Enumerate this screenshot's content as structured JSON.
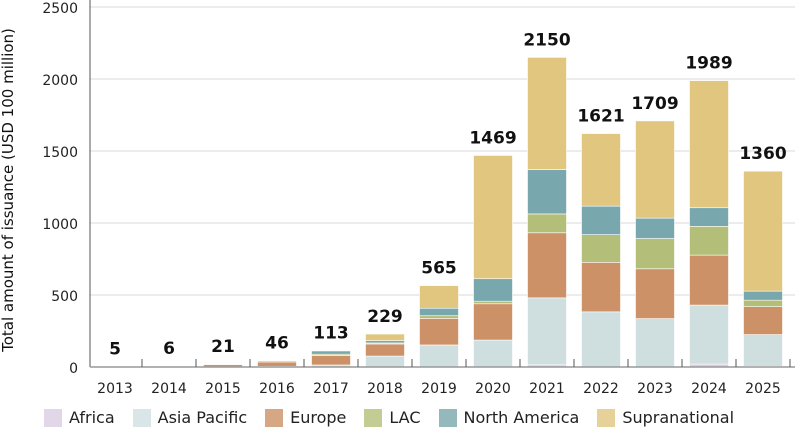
{
  "chart_data": {
    "type": "bar",
    "stacked": true,
    "ylabel": "Total amount of issuance (USD 100 million)",
    "ylim": [
      0,
      2500
    ],
    "yticks": [
      0,
      500,
      1000,
      1500,
      2000,
      2500
    ],
    "grid": true,
    "legend_position": "bottom",
    "categories": [
      "2013",
      "2014",
      "2015",
      "2016",
      "2017",
      "2018",
      "2019",
      "2020",
      "2021",
      "2022",
      "2023",
      "2024",
      "2025"
    ],
    "totals": [
      5,
      6,
      21,
      46,
      113,
      229,
      565,
      1469,
      2150,
      1621,
      1709,
      1989,
      1360
    ],
    "series": [
      {
        "name": "Africa",
        "color": "#d9cde3",
        "values": [
          0,
          0,
          0,
          0,
          0,
          0,
          0,
          0,
          15,
          0,
          0,
          20,
          5
        ]
      },
      {
        "name": "Asia Pacific",
        "color": "#cfdfe0",
        "values": [
          0,
          0,
          2,
          5,
          14,
          76,
          153,
          187,
          465,
          383,
          336,
          410,
          220
        ]
      },
      {
        "name": "Europe",
        "color": "#cc9166",
        "values": [
          5,
          6,
          15,
          30,
          66,
          84,
          185,
          252,
          452,
          344,
          346,
          347,
          194
        ]
      },
      {
        "name": "LAC",
        "color": "#b3bf78",
        "values": [
          0,
          0,
          0,
          2,
          9,
          7,
          18,
          18,
          131,
          192,
          210,
          200,
          45
        ]
      },
      {
        "name": "North America",
        "color": "#78a8ad",
        "values": [
          0,
          0,
          4,
          7,
          23,
          16,
          52,
          156,
          308,
          198,
          142,
          129,
          63
        ]
      },
      {
        "name": "Supranational",
        "color": "#e0c67e",
        "values": [
          0,
          0,
          0,
          2,
          1,
          46,
          157,
          856,
          779,
          504,
          675,
          883,
          833
        ]
      }
    ]
  }
}
